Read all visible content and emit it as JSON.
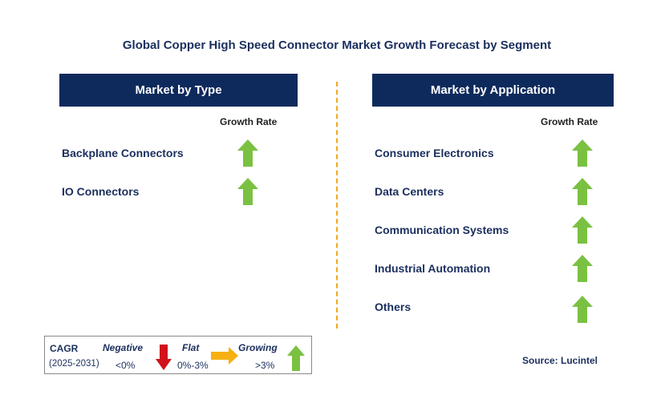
{
  "title": "Global Copper High Speed Connector Market Growth Forecast by Segment",
  "colors": {
    "header_bg": "#0e2a5c",
    "text": "#1b2f5e",
    "divider": "#f5a623",
    "growing": "#7ac142",
    "negative": "#d0121b",
    "flat": "#f6b012"
  },
  "left": {
    "header": "Market by Type",
    "growth_label": "Growth Rate",
    "items": [
      {
        "label": "Backplane Connectors",
        "trend": "growing"
      },
      {
        "label": "IO Connectors",
        "trend": "growing"
      }
    ]
  },
  "right": {
    "header": "Market by Application",
    "growth_label": "Growth Rate",
    "items": [
      {
        "label": "Consumer Electronics",
        "trend": "growing"
      },
      {
        "label": "Data Centers",
        "trend": "growing"
      },
      {
        "label": "Communication Systems",
        "trend": "growing"
      },
      {
        "label": "Industrial Automation",
        "trend": "growing"
      },
      {
        "label": "Others",
        "trend": "growing"
      }
    ]
  },
  "legend": {
    "cagr": "CAGR",
    "period": "(2025-2031)",
    "negative": {
      "label": "Negative",
      "range": "<0%"
    },
    "flat": {
      "label": "Flat",
      "range": "0%-3%"
    },
    "growing": {
      "label": "Growing",
      "range": ">3%"
    }
  },
  "source": "Source: Lucintel"
}
